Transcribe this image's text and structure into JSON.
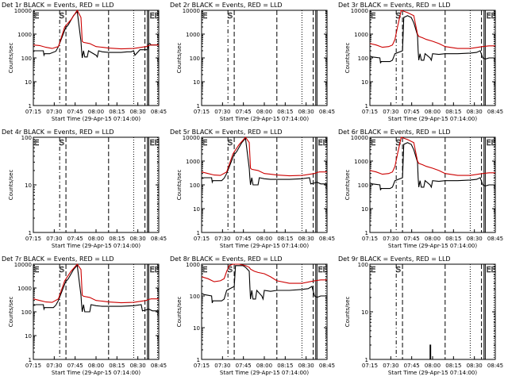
{
  "chart_data": [
    {
      "type": "line",
      "title": "Det 1r BLACK = Events, RED = LLD",
      "xlabel": "Start Time (29-Apr-15 07:14:00)",
      "ylabel": "Counts/sec",
      "x_ticks": [
        "07:15",
        "07:30",
        "07:45",
        "08:00",
        "08:15",
        "08:30",
        "08:45"
      ],
      "y_ticks": [
        "1",
        "10",
        "100",
        "1000",
        "10000"
      ],
      "xlim": [
        1,
        100
      ],
      "ylim": [
        1,
        10000
      ],
      "yscale": "log",
      "markers": [
        {
          "label": "E",
          "x": 0
        },
        {
          "label": "S",
          "x": 20
        },
        {
          "label": "EE",
          "x": 92
        }
      ],
      "series": [
        {
          "name": "Events",
          "color": "#000000",
          "x": [
            0,
            1,
            8,
            8.5,
            9,
            12,
            13,
            18,
            20,
            26,
            26.5,
            28,
            32,
            35,
            38,
            38.5,
            39,
            40,
            41,
            43,
            44,
            50,
            51,
            52,
            55,
            60,
            65,
            70,
            75,
            78,
            80,
            81,
            85,
            91,
            92,
            93,
            94,
            100
          ],
          "y": [
            180,
            200,
            200,
            130,
            150,
            150,
            150,
            190,
            300,
            2000,
            2000,
            2500,
            6000,
            9000,
            500,
            200,
            100,
            200,
            110,
            110,
            200,
            130,
            110,
            200,
            180,
            170,
            170,
            170,
            180,
            180,
            200,
            130,
            220,
            220,
            400,
            400,
            350,
            350
          ]
        },
        {
          "name": "LLD",
          "color": "#cc0000",
          "x": [
            0,
            5,
            10,
            15,
            20,
            25,
            30,
            35,
            38,
            39,
            40,
            45,
            50,
            55,
            60,
            70,
            80,
            90,
            92,
            94,
            100
          ],
          "y": [
            350,
            330,
            280,
            250,
            300,
            2000,
            4000,
            10000,
            5000,
            500,
            450,
            400,
            300,
            280,
            260,
            240,
            250,
            300,
            330,
            350,
            350
          ]
        }
      ]
    },
    {
      "type": "line",
      "title": "Det 2r BLACK = Events, RED = LLD",
      "xlabel": "Start Time (29-Apr-15 07:14:00)",
      "ylabel": "Counts/sec",
      "x_ticks": [
        "07:15",
        "07:30",
        "07:45",
        "08:00",
        "08:15",
        "08:30",
        "08:45"
      ],
      "y_ticks": [
        "1",
        "10",
        "100",
        "1000",
        "10000"
      ],
      "xlim": [
        1,
        100
      ],
      "ylim": [
        1,
        10000
      ],
      "yscale": "log",
      "markers": [
        {
          "label": "E",
          "x": 0
        },
        {
          "label": "S",
          "x": 20
        }
      ],
      "series": []
    },
    {
      "type": "line",
      "title": "Det 3r BLACK = Events, RED = LLD",
      "xlabel": "Start Time (29-Apr-15 07:14:00)",
      "ylabel": "Counts/sec",
      "x_ticks": [
        "07:15",
        "07:30",
        "07:45",
        "08:00",
        "08:15",
        "08:30",
        "08:45"
      ],
      "y_ticks": [
        "1",
        "10",
        "100",
        "1000",
        "10000"
      ],
      "xlim": [
        1,
        100
      ],
      "ylim": [
        1,
        10000
      ],
      "yscale": "log",
      "markers": [
        {
          "label": "E",
          "x": 0
        },
        {
          "label": "S",
          "x": 20
        },
        {
          "label": "EE",
          "x": 92
        }
      ],
      "series": [
        {
          "name": "Events",
          "color": "#000000",
          "x": [
            0,
            2,
            8,
            8.5,
            9,
            15,
            16,
            18,
            20,
            26,
            27,
            30,
            33,
            35,
            38,
            38.5,
            39,
            40,
            41,
            43,
            44,
            48,
            49,
            50,
            55,
            60,
            70,
            80,
            85,
            88,
            90,
            92,
            95,
            100
          ],
          "y": [
            120,
            110,
            100,
            60,
            70,
            70,
            70,
            80,
            150,
            200,
            5000,
            6000,
            5000,
            3000,
            900,
            200,
            80,
            150,
            80,
            80,
            150,
            100,
            80,
            150,
            140,
            150,
            150,
            160,
            170,
            200,
            100,
            90,
            100,
            100
          ]
        },
        {
          "name": "LLD",
          "color": "#cc0000",
          "x": [
            0,
            5,
            10,
            15,
            18,
            20,
            22,
            25,
            30,
            35,
            38,
            39,
            42,
            45,
            50,
            55,
            60,
            70,
            80,
            90,
            95,
            100
          ],
          "y": [
            400,
            350,
            280,
            300,
            350,
            600,
            2000,
            10000,
            8000,
            6000,
            1000,
            800,
            700,
            600,
            500,
            400,
            300,
            250,
            250,
            300,
            320,
            320
          ]
        }
      ]
    },
    {
      "type": "line",
      "title": "Det 4r BLACK = Events, RED = LLD",
      "xlabel": "Start Time (29-Apr-15 07:14:00)",
      "ylabel": "Counts/sec",
      "x_ticks": [
        "07:15",
        "07:30",
        "07:45",
        "08:00",
        "08:15",
        "08:30",
        "08:45"
      ],
      "y_ticks": [
        "1",
        "10",
        "100"
      ],
      "xlim": [
        1,
        100
      ],
      "ylim": [
        1,
        100
      ],
      "yscale": "log",
      "markers": [
        {
          "label": "E",
          "x": 0
        },
        {
          "label": "S",
          "x": 20
        },
        {
          "label": "EE",
          "x": 92
        }
      ],
      "series": []
    },
    {
      "type": "line",
      "title": "Det 5r BLACK = Events, RED = LLD",
      "xlabel": "Start Time (29-Apr-15 07:14:00)",
      "ylabel": "Counts/sec",
      "x_ticks": [
        "07:15",
        "07:30",
        "07:45",
        "08:00",
        "08:15",
        "08:30",
        "08:45"
      ],
      "y_ticks": [
        "1",
        "10",
        "100",
        "1000",
        "10000"
      ],
      "xlim": [
        1,
        100
      ],
      "ylim": [
        1,
        10000
      ],
      "yscale": "log",
      "markers": [
        {
          "label": "E",
          "x": 0
        },
        {
          "label": "S",
          "x": 20
        },
        {
          "label": "EE",
          "x": 92
        }
      ],
      "series": [
        {
          "name": "Events",
          "color": "#000000",
          "x": [
            0,
            2,
            8,
            8.5,
            9,
            15,
            16,
            18,
            20,
            26,
            26.5,
            28,
            32,
            35,
            38,
            38.5,
            39,
            40,
            41,
            45,
            46,
            50,
            55,
            60,
            70,
            80,
            86,
            87,
            90,
            92,
            95,
            100
          ],
          "y": [
            180,
            200,
            200,
            130,
            150,
            150,
            150,
            190,
            300,
            2000,
            2000,
            2500,
            6000,
            9000,
            500,
            200,
            100,
            200,
            100,
            100,
            200,
            180,
            170,
            170,
            170,
            180,
            200,
            110,
            120,
            130,
            110,
            110
          ]
        },
        {
          "name": "LLD",
          "color": "#cc0000",
          "x": [
            0,
            5,
            10,
            15,
            20,
            25,
            30,
            35,
            38,
            39,
            40,
            45,
            50,
            55,
            60,
            70,
            80,
            90,
            92,
            94,
            100
          ],
          "y": [
            350,
            300,
            260,
            250,
            350,
            2000,
            5000,
            10000,
            6000,
            500,
            450,
            400,
            300,
            280,
            260,
            240,
            250,
            300,
            330,
            350,
            350
          ]
        }
      ]
    },
    {
      "type": "line",
      "title": "Det 6r BLACK = Events, RED = LLD",
      "xlabel": "Start Time (29-Apr-15 07:14:00)",
      "ylabel": "Counts/sec",
      "x_ticks": [
        "07:15",
        "07:30",
        "07:45",
        "08:00",
        "08:15",
        "08:30",
        "08:45"
      ],
      "y_ticks": [
        "1",
        "10",
        "100",
        "1000",
        "10000"
      ],
      "xlim": [
        1,
        100
      ],
      "ylim": [
        1,
        10000
      ],
      "yscale": "log",
      "markers": [
        {
          "label": "E",
          "x": 0
        },
        {
          "label": "S",
          "x": 20
        },
        {
          "label": "EE",
          "x": 92
        }
      ],
      "series": [
        {
          "name": "Events",
          "color": "#000000",
          "x": [
            0,
            2,
            8,
            8.5,
            9,
            15,
            16,
            18,
            20,
            26,
            27,
            30,
            33,
            35,
            38,
            38.5,
            39,
            40,
            41,
            43,
            44,
            48,
            49,
            50,
            55,
            60,
            70,
            80,
            85,
            88,
            90,
            92,
            95,
            100
          ],
          "y": [
            120,
            110,
            100,
            60,
            70,
            70,
            70,
            80,
            150,
            200,
            5000,
            6000,
            5000,
            3000,
            900,
            200,
            80,
            150,
            80,
            80,
            150,
            100,
            80,
            150,
            140,
            150,
            150,
            160,
            170,
            200,
            100,
            90,
            100,
            100
          ]
        },
        {
          "name": "LLD",
          "color": "#cc0000",
          "x": [
            0,
            5,
            10,
            15,
            18,
            20,
            22,
            25,
            30,
            35,
            38,
            39,
            42,
            45,
            50,
            55,
            60,
            70,
            80,
            90,
            95,
            100
          ],
          "y": [
            400,
            350,
            280,
            300,
            350,
            600,
            2000,
            10000,
            8000,
            6000,
            1000,
            800,
            700,
            600,
            500,
            400,
            300,
            250,
            250,
            300,
            320,
            320
          ]
        }
      ]
    },
    {
      "type": "line",
      "title": "Det 7r BLACK = Events, RED = LLD",
      "xlabel": "Start Time (29-Apr-15 07:14:00)",
      "ylabel": "Counts/sec",
      "x_ticks": [
        "07:15",
        "07:30",
        "07:45",
        "08:00",
        "08:15",
        "08:30",
        "08:45"
      ],
      "y_ticks": [
        "1",
        "10",
        "100",
        "1000",
        "10000"
      ],
      "xlim": [
        1,
        100
      ],
      "ylim": [
        1,
        10000
      ],
      "yscale": "log",
      "markers": [
        {
          "label": "E",
          "x": 0
        },
        {
          "label": "S",
          "x": 20
        },
        {
          "label": "EE",
          "x": 92
        }
      ],
      "series": [
        {
          "name": "Events",
          "color": "#000000",
          "x": [
            0,
            2,
            8,
            8.5,
            9,
            15,
            16,
            18,
            20,
            26,
            26.5,
            28,
            32,
            35,
            38,
            38.5,
            39,
            40,
            41,
            45,
            46,
            50,
            55,
            60,
            70,
            80,
            86,
            87,
            90,
            92,
            95,
            100
          ],
          "y": [
            180,
            200,
            200,
            130,
            150,
            150,
            150,
            190,
            300,
            2000,
            2000,
            2500,
            6000,
            9000,
            500,
            200,
            100,
            200,
            100,
            100,
            200,
            180,
            170,
            170,
            170,
            180,
            200,
            110,
            120,
            130,
            110,
            110
          ]
        },
        {
          "name": "LLD",
          "color": "#cc0000",
          "x": [
            0,
            5,
            10,
            15,
            20,
            25,
            30,
            35,
            38,
            39,
            40,
            45,
            50,
            55,
            60,
            70,
            80,
            90,
            92,
            94,
            100
          ],
          "y": [
            350,
            300,
            260,
            250,
            350,
            2000,
            5000,
            10000,
            6000,
            500,
            450,
            400,
            300,
            280,
            260,
            240,
            250,
            300,
            330,
            350,
            350
          ]
        }
      ]
    },
    {
      "type": "line",
      "title": "Det 8r BLACK = Events, RED = LLD",
      "xlabel": "Start Time (29-Apr-15 07:14:00)",
      "ylabel": "Counts/sec",
      "x_ticks": [
        "07:15",
        "07:30",
        "07:45",
        "08:00",
        "08:15",
        "08:30",
        "08:45"
      ],
      "y_ticks": [
        "1",
        "10",
        "100",
        "1000"
      ],
      "xlim": [
        1,
        100
      ],
      "ylim": [
        1,
        1000
      ],
      "yscale": "log",
      "markers": [
        {
          "label": "E",
          "x": 0
        },
        {
          "label": "S",
          "x": 20
        },
        {
          "label": "EE",
          "x": 92
        }
      ],
      "series": [
        {
          "name": "Events",
          "color": "#000000",
          "x": [
            0,
            2,
            8,
            8.5,
            9,
            15,
            16,
            18,
            20,
            26,
            27,
            30,
            33,
            35,
            38,
            38.5,
            39,
            40,
            41,
            43,
            44,
            48,
            49,
            50,
            55,
            60,
            70,
            80,
            85,
            88,
            90,
            92,
            95,
            100
          ],
          "y": [
            120,
            110,
            100,
            60,
            70,
            70,
            70,
            80,
            150,
            200,
            900,
            900,
            900,
            800,
            600,
            200,
            80,
            150,
            80,
            80,
            150,
            100,
            80,
            150,
            140,
            150,
            150,
            160,
            170,
            200,
            100,
            90,
            100,
            100
          ]
        },
        {
          "name": "LLD",
          "color": "#cc0000",
          "x": [
            0,
            5,
            10,
            15,
            18,
            20,
            22,
            25,
            30,
            35,
            38,
            39,
            42,
            45,
            50,
            55,
            60,
            70,
            80,
            90,
            95,
            100
          ],
          "y": [
            400,
            350,
            280,
            300,
            350,
            600,
            900,
            1000,
            1000,
            900,
            800,
            700,
            600,
            550,
            500,
            400,
            300,
            250,
            250,
            300,
            320,
            320
          ]
        }
      ]
    },
    {
      "type": "line",
      "title": "Det 9r BLACK = Events, RED = LLD",
      "xlabel": "Start Time (29-Apr-15 07:14:00)",
      "ylabel": "Counts/sec",
      "x_ticks": [
        "07:15",
        "07:30",
        "07:45",
        "08:00",
        "08:15",
        "08:30",
        "08:45"
      ],
      "y_ticks": [
        "1",
        "10",
        "100"
      ],
      "xlim": [
        1,
        100
      ],
      "ylim": [
        1,
        100
      ],
      "yscale": "log",
      "markers": [
        {
          "label": "E",
          "x": 0
        },
        {
          "label": "S",
          "x": 20
        },
        {
          "label": "EE",
          "x": 92
        }
      ],
      "series": [
        {
          "name": "Events",
          "color": "#000000",
          "x": [
            48,
            48,
            48.5,
            48.5
          ],
          "y": [
            1,
            2,
            2,
            1
          ]
        }
      ]
    }
  ]
}
